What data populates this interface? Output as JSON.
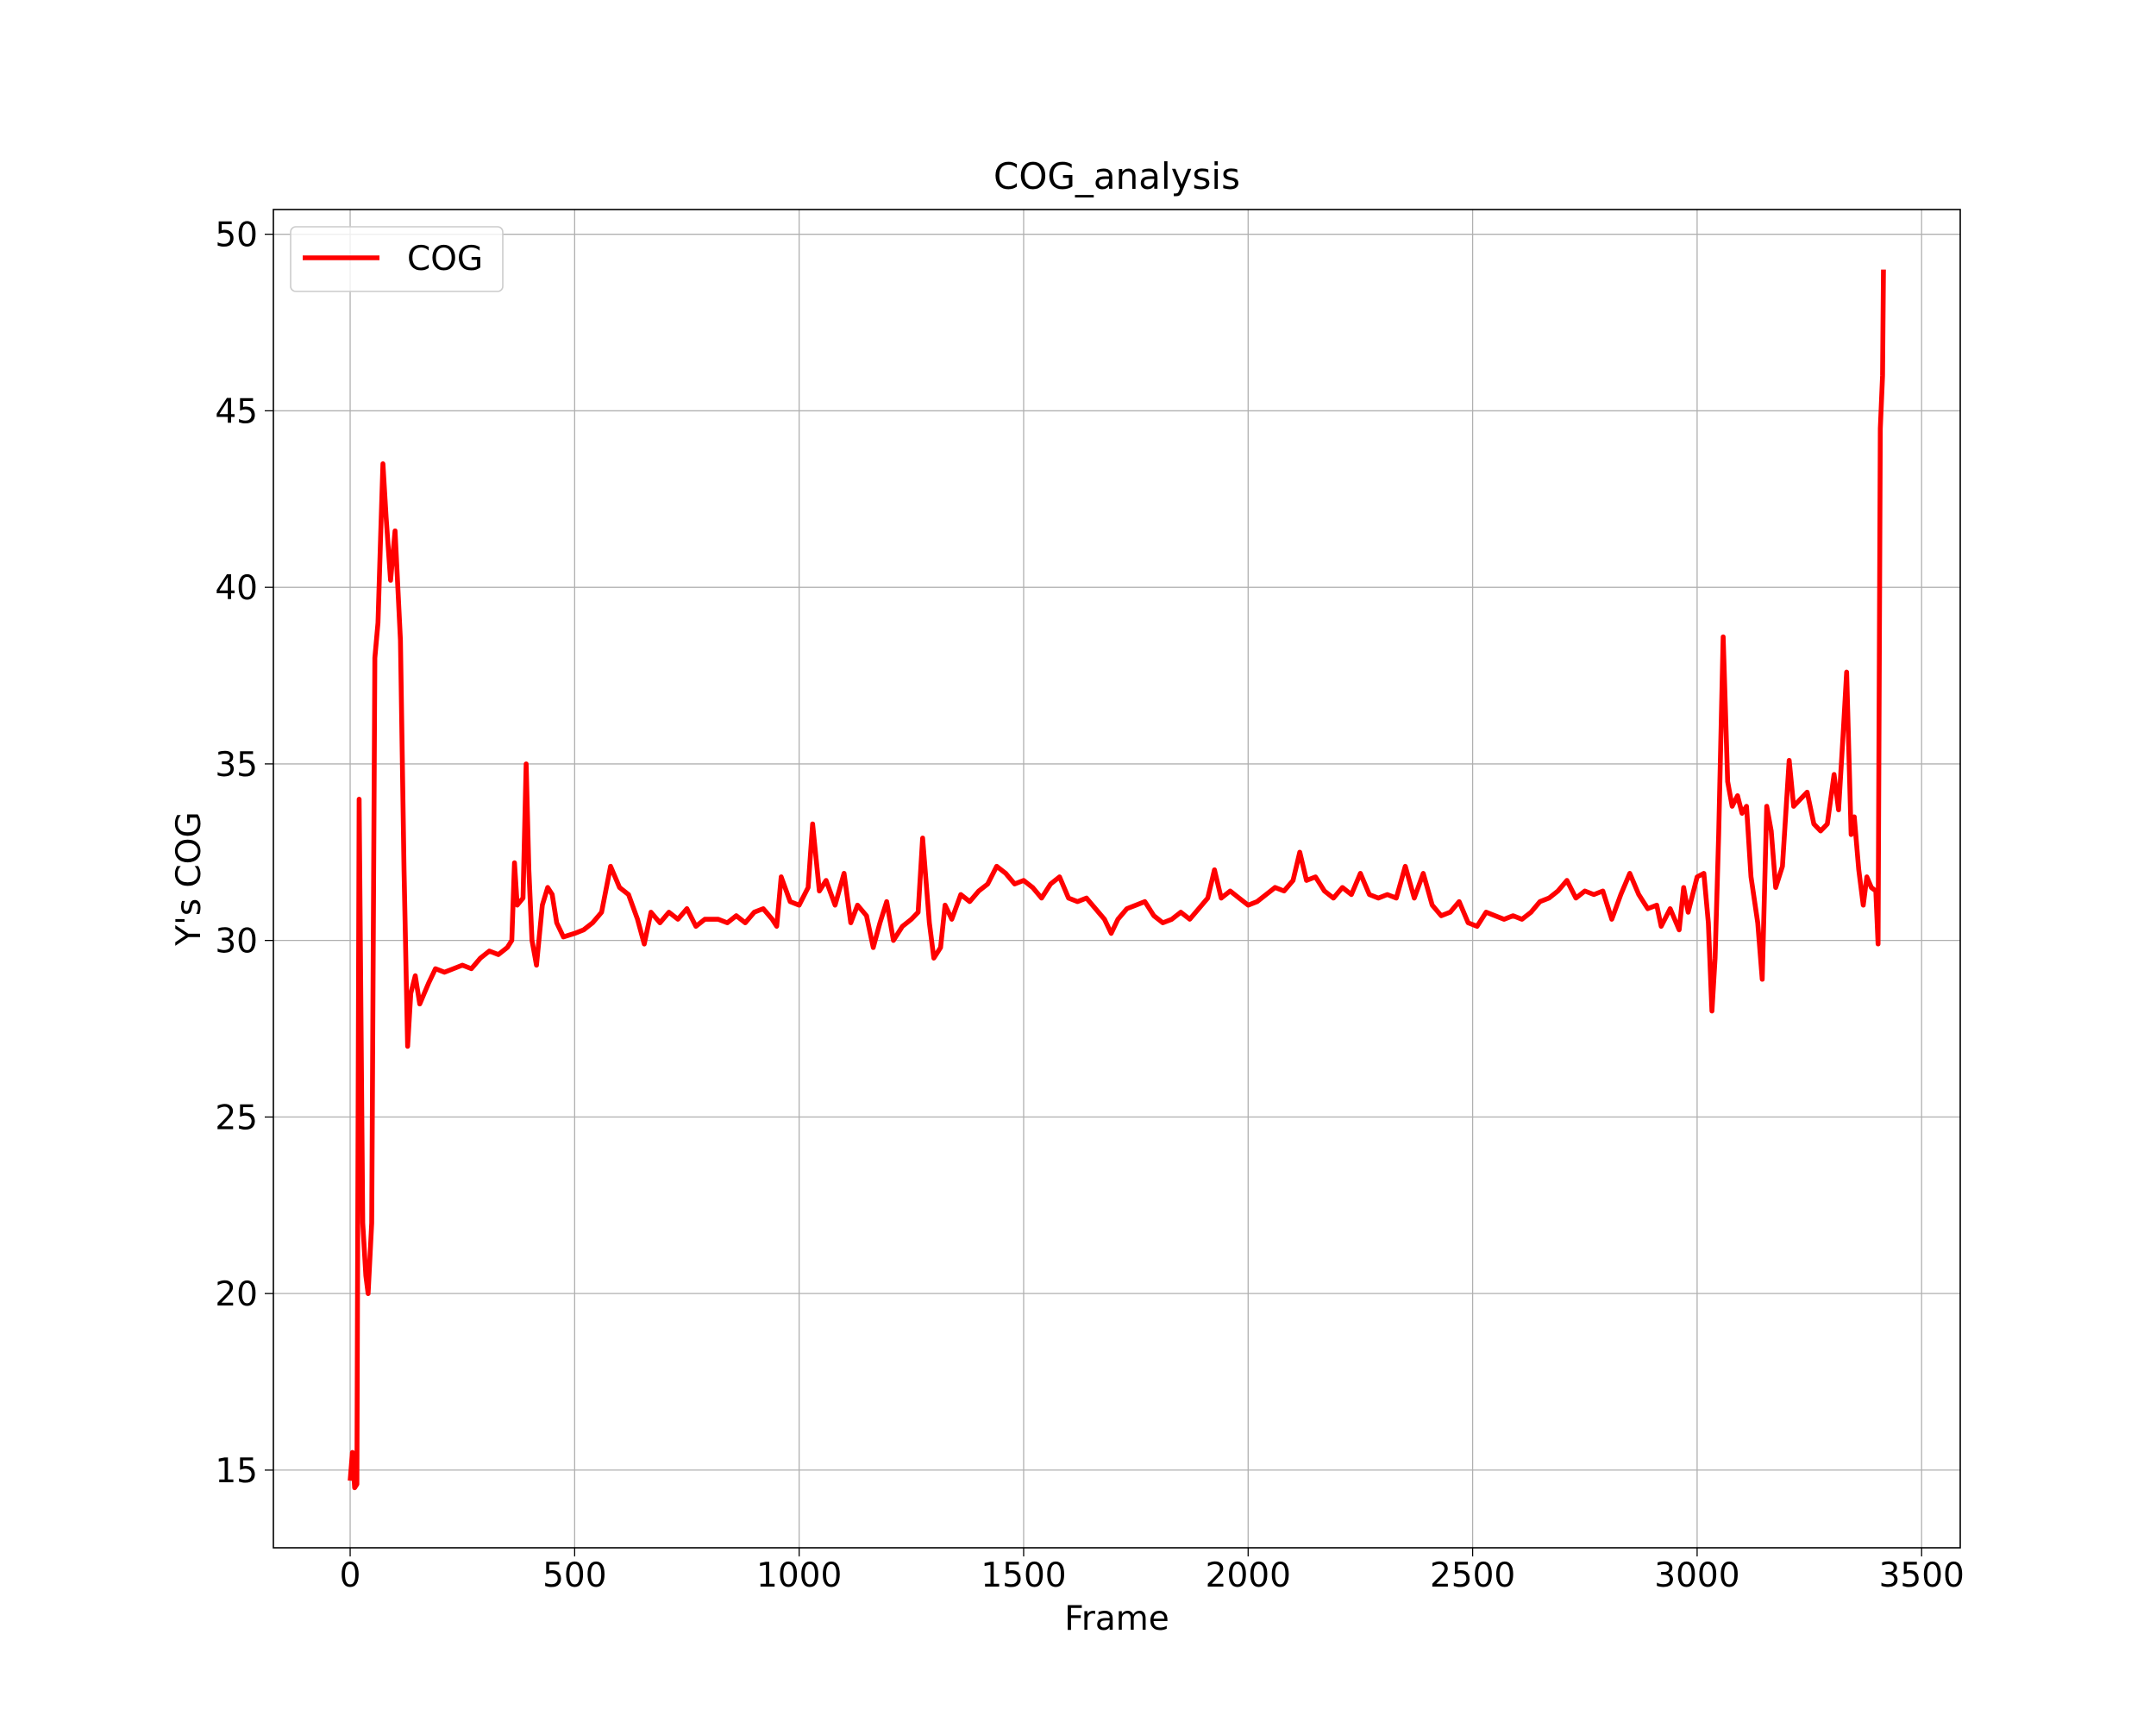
{
  "chart_data": {
    "type": "line",
    "title": "COG_analysis",
    "xlabel": "Frame",
    "ylabel": "Y's COG",
    "x": [
      0,
      5,
      10,
      15,
      20,
      28,
      35,
      40,
      48,
      55,
      62,
      68,
      73,
      80,
      90,
      100,
      112,
      120,
      128,
      135,
      145,
      155,
      165,
      175,
      190,
      210,
      230,
      250,
      270,
      290,
      310,
      330,
      350,
      360,
      366,
      372,
      385,
      392,
      398,
      405,
      415,
      428,
      440,
      450,
      460,
      475,
      500,
      520,
      540,
      560,
      580,
      600,
      620,
      640,
      655,
      670,
      690,
      710,
      730,
      750,
      770,
      790,
      820,
      840,
      860,
      880,
      900,
      920,
      940,
      950,
      960,
      980,
      1000,
      1020,
      1030,
      1045,
      1060,
      1080,
      1100,
      1115,
      1130,
      1150,
      1165,
      1180,
      1195,
      1210,
      1230,
      1250,
      1265,
      1275,
      1290,
      1300,
      1315,
      1325,
      1340,
      1360,
      1380,
      1400,
      1420,
      1440,
      1460,
      1480,
      1500,
      1520,
      1540,
      1560,
      1580,
      1600,
      1620,
      1640,
      1660,
      1680,
      1695,
      1710,
      1730,
      1750,
      1770,
      1790,
      1810,
      1830,
      1850,
      1870,
      1890,
      1910,
      1925,
      1940,
      1960,
      1980,
      2000,
      2020,
      2040,
      2060,
      2080,
      2100,
      2115,
      2130,
      2150,
      2170,
      2190,
      2210,
      2230,
      2250,
      2270,
      2290,
      2310,
      2330,
      2350,
      2370,
      2390,
      2410,
      2430,
      2450,
      2470,
      2490,
      2510,
      2530,
      2550,
      2570,
      2590,
      2610,
      2630,
      2650,
      2670,
      2690,
      2710,
      2730,
      2750,
      2770,
      2790,
      2810,
      2830,
      2850,
      2870,
      2890,
      2910,
      2920,
      2940,
      2960,
      2970,
      2980,
      3000,
      3015,
      3025,
      3033,
      3040,
      3048,
      3058,
      3068,
      3078,
      3090,
      3100,
      3110,
      3120,
      3135,
      3145,
      3155,
      3165,
      3175,
      3190,
      3205,
      3215,
      3230,
      3245,
      3260,
      3275,
      3290,
      3305,
      3315,
      3325,
      3333,
      3343,
      3350,
      3360,
      3370,
      3378,
      3388,
      3398,
      3403,
      3408,
      3413,
      3415
    ],
    "series": [
      {
        "name": "COG",
        "color": "#ff0000",
        "values": [
          14.7,
          15.5,
          14.5,
          14.6,
          34,
          22,
          20.5,
          20,
          22,
          38,
          39,
          41.5,
          43.5,
          42,
          40.2,
          41.6,
          38.5,
          32,
          27,
          28.5,
          29,
          28.2,
          28.5,
          28.8,
          29.2,
          29.1,
          29.2,
          29.3,
          29.2,
          29.5,
          29.7,
          29.6,
          29.8,
          30.0,
          32.2,
          31,
          31.2,
          35,
          32,
          30,
          29.3,
          31,
          31.5,
          31.3,
          30.5,
          30.1,
          30.2,
          30.3,
          30.5,
          30.8,
          32.1,
          31.5,
          31.3,
          30.6,
          29.9,
          30.8,
          30.5,
          30.8,
          30.6,
          30.9,
          30.4,
          30.6,
          30.6,
          30.5,
          30.7,
          30.5,
          30.8,
          30.9,
          30.6,
          30.4,
          31.8,
          31.1,
          31.0,
          31.5,
          33.3,
          31.4,
          31.7,
          31.0,
          31.9,
          30.5,
          31.0,
          30.7,
          29.8,
          30.5,
          31.1,
          30.0,
          30.4,
          30.6,
          30.8,
          32.9,
          30.5,
          29.5,
          29.8,
          31.0,
          30.6,
          31.3,
          31.1,
          31.4,
          31.6,
          32.1,
          31.9,
          31.6,
          31.7,
          31.5,
          31.2,
          31.6,
          31.8,
          31.2,
          31.1,
          31.2,
          30.9,
          30.6,
          30.2,
          30.6,
          30.9,
          31.0,
          31.1,
          30.7,
          30.5,
          30.6,
          30.8,
          30.6,
          30.9,
          31.2,
          32.0,
          31.2,
          31.4,
          31.2,
          31.0,
          31.1,
          31.3,
          31.5,
          31.4,
          31.7,
          32.5,
          31.7,
          31.8,
          31.4,
          31.2,
          31.5,
          31.3,
          31.9,
          31.3,
          31.2,
          31.3,
          31.2,
          32.1,
          31.2,
          31.9,
          31.0,
          30.7,
          30.8,
          31.1,
          30.5,
          30.4,
          30.8,
          30.7,
          30.6,
          30.7,
          30.6,
          30.8,
          31.1,
          31.2,
          31.4,
          31.7,
          31.2,
          31.4,
          31.3,
          31.4,
          30.6,
          31.3,
          31.9,
          31.3,
          30.9,
          31.0,
          30.4,
          30.9,
          30.3,
          31.5,
          30.8,
          31.8,
          31.9,
          30.5,
          28.0,
          29.5,
          33.0,
          38.6,
          34.5,
          33.8,
          34.1,
          33.6,
          33.8,
          31.8,
          30.5,
          28.9,
          33.8,
          33.1,
          31.5,
          32.1,
          35.1,
          33.8,
          34.0,
          34.2,
          33.3,
          33.1,
          33.3,
          34.7,
          33.7,
          35.8,
          37.6,
          33.0,
          33.5,
          32.0,
          31.0,
          31.8,
          31.5,
          31.4,
          29.9,
          44.5,
          46,
          49
        ]
      }
    ],
    "xlim": [
      -171,
      3586
    ],
    "ylim": [
      12.8,
      50.7
    ],
    "xticks": [
      0,
      500,
      1000,
      1500,
      2000,
      2500,
      3000,
      3500
    ],
    "yticks": [
      15,
      20,
      25,
      30,
      35,
      40,
      45,
      50
    ],
    "grid": true,
    "legend": "upper left"
  }
}
